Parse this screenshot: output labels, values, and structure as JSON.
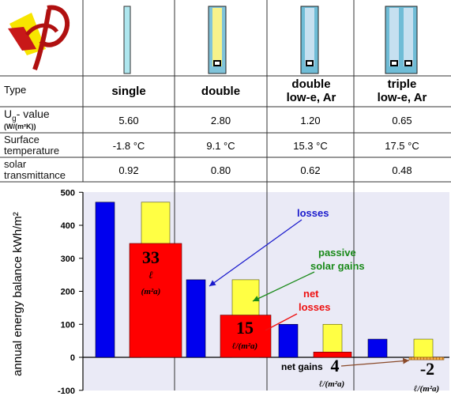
{
  "table": {
    "row_labels": {
      "type": "Type",
      "ug_main": "U",
      "ug_sub": "g",
      "ug_rest": "- value",
      "ug_unit": "(W/(m²K))",
      "surface": "Surface temperature",
      "solar": "solar transmittance"
    },
    "columns": [
      {
        "type": "single",
        "ug": "5.60",
        "surface_temp": "-1.8 °C",
        "solar_transmittance": "0.92"
      },
      {
        "type": "double",
        "ug": "2.80",
        "surface_temp": "9.1 °C",
        "solar_transmittance": "0.80"
      },
      {
        "type": "double low-e, Ar",
        "ug": "1.20",
        "surface_temp": "15.3 °C",
        "solar_transmittance": "0.62"
      },
      {
        "type": "triple low-e, Ar",
        "ug": "0.65",
        "surface_temp": "17.5 °C",
        "solar_transmittance": "0.48"
      }
    ]
  },
  "chart_data": {
    "type": "bar",
    "ylabel": "annual energy balance kWh/m²",
    "ylim": [
      -100,
      500
    ],
    "yticks": [
      500,
      400,
      300,
      200,
      100,
      0,
      -100
    ],
    "groups": [
      {
        "losses": 470,
        "solar_gains": 470,
        "net": 345,
        "net_label": "33",
        "unit_top": "ℓ",
        "unit_bottom": "(m²a)"
      },
      {
        "losses": 235,
        "solar_gains": 235,
        "net": 128,
        "net_label": "15",
        "unit": "ℓ/(m²a)"
      },
      {
        "losses": 100,
        "solar_gains": 100,
        "net": 16,
        "net_label": "4",
        "unit": "ℓ/(m²a)"
      },
      {
        "losses": 55,
        "solar_gains": 55,
        "net": -15,
        "net_label": "-2",
        "unit": "ℓ/(m²a)"
      }
    ],
    "annotations": {
      "losses": "losses",
      "passive_solar_gains": "passive solar gains",
      "net_losses": "net losses",
      "net_gains": "net gains"
    },
    "colors": {
      "losses": "#0000ee",
      "solar_gains": "#ffff44",
      "net_losses": "#ff0000",
      "net_gains": "#f5b04a",
      "panel": "#eaeaf6",
      "loss_label": "#1a1acc",
      "gain_label": "#1a8a1a",
      "net_label_color": "#ee1111"
    }
  }
}
